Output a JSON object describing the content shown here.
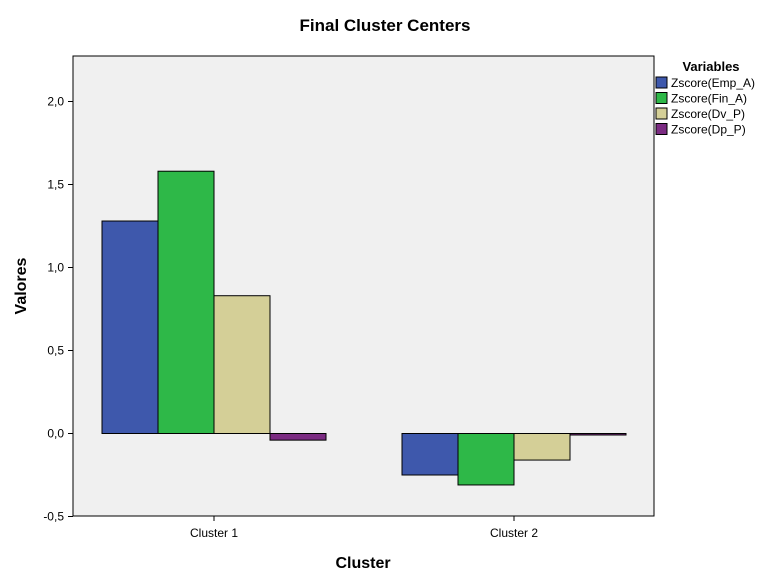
{
  "chart_data": {
    "type": "bar",
    "title": "Final Cluster Centers",
    "xlabel": "Cluster",
    "ylabel": "Valores",
    "categories": [
      "Cluster 1",
      "Cluster 2"
    ],
    "ylim": [
      -0.5,
      2.3
    ],
    "yticks": [
      "-0,5",
      "0,0",
      "0,5",
      "1,0",
      "1,5",
      "2,0"
    ],
    "ytick_values": [
      -0.5,
      0.0,
      0.5,
      1.0,
      1.5,
      2.0
    ],
    "legend_title": "Variables",
    "legend_position": "top-right",
    "plot_background": "#f0f0f0",
    "grid": false,
    "series": [
      {
        "name": "Zscore(Emp_A)",
        "color": "#3e58ac",
        "values": [
          1.28,
          -0.25
        ]
      },
      {
        "name": "Zscore(Fin_A)",
        "color": "#2eb848",
        "values": [
          1.58,
          -0.31
        ]
      },
      {
        "name": "Zscore(Dv_P)",
        "color": "#d4cf97",
        "values": [
          0.83,
          -0.16
        ]
      },
      {
        "name": "Zscore(Dp_P)",
        "color": "#7b2b82",
        "values": [
          -0.04,
          -0.005
        ]
      }
    ]
  }
}
